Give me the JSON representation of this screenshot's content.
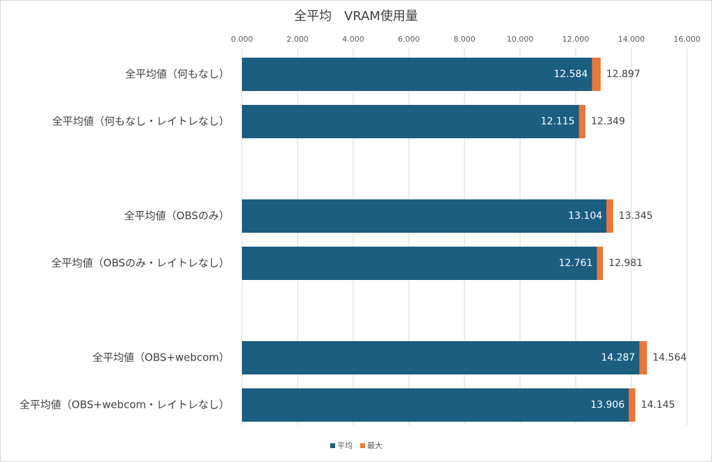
{
  "chart_data": {
    "type": "bar",
    "orientation": "horizontal",
    "title": "全平均　VRAM使用量",
    "categories": [
      "全平均値（何もなし）",
      "全平均値（何もなし・レイトレなし）",
      null,
      "全平均値（OBSのみ）",
      "全平均値（OBSのみ・レイトレなし）",
      null,
      "全平均値（OBS+webcom）",
      "全平均値（OBS+webcom・レイトレなし）"
    ],
    "series": [
      {
        "name": "平均",
        "color": "#1b5e80",
        "values": [
          12.584,
          12.115,
          null,
          13.104,
          12.761,
          null,
          14.287,
          13.906
        ]
      },
      {
        "name": "最大",
        "color": "#e8793a",
        "values": [
          12.897,
          12.349,
          null,
          13.345,
          12.981,
          null,
          14.564,
          14.145
        ]
      }
    ],
    "xlim": [
      0,
      16
    ],
    "xticks": [
      {
        "value": 0,
        "label": "0.000"
      },
      {
        "value": 2,
        "label": "2.000"
      },
      {
        "value": 4,
        "label": "4.000"
      },
      {
        "value": 6,
        "label": "6.000"
      },
      {
        "value": 8,
        "label": "8.000"
      },
      {
        "value": 10,
        "label": "10.000"
      },
      {
        "value": 12,
        "label": "12.000"
      },
      {
        "value": 14,
        "label": "14.000"
      },
      {
        "value": 16,
        "label": "16.000"
      }
    ],
    "grid": true,
    "legend": "bottom"
  }
}
